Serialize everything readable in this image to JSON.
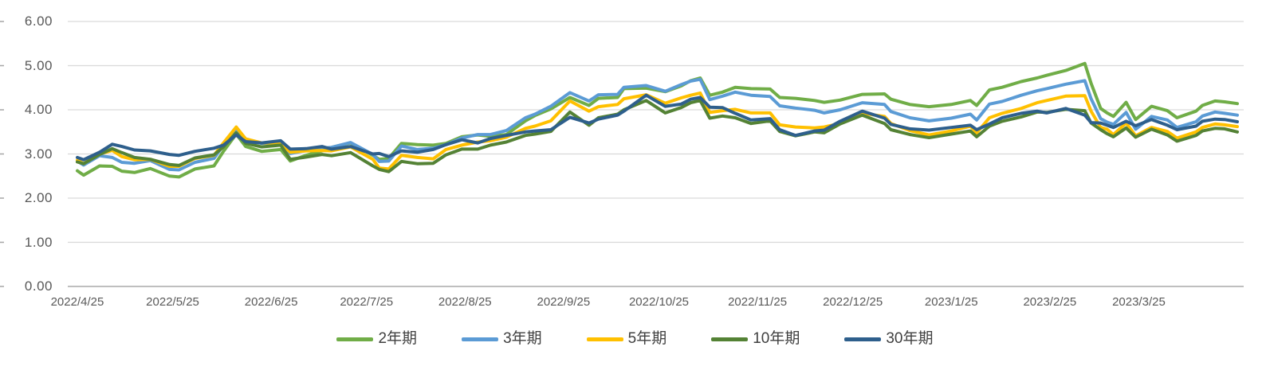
{
  "chart_data": {
    "type": "line",
    "title": "",
    "xlabel": "",
    "ylabel": "",
    "grid": true,
    "legend_position": "bottom",
    "y_axis": {
      "min": 0,
      "max": 6,
      "step": 1,
      "tick_labels": [
        "0.00",
        "1.00",
        "2.00",
        "3.00",
        "4.00",
        "5.00",
        "6.00"
      ]
    },
    "x_axis": {
      "tick_labels": [
        "2022/4/25",
        "2022/5/25",
        "2022/6/25",
        "2022/7/25",
        "2022/8/25",
        "2022/9/25",
        "2022/10/25",
        "2022/11/25",
        "2022/12/25",
        "2023/1/25",
        "2023/2/25",
        "2023/3/25"
      ]
    },
    "x": [
      "2022/4/25",
      "2022/4/27",
      "2022/5/2",
      "2022/5/6",
      "2022/5/9",
      "2022/5/13",
      "2022/5/18",
      "2022/5/24",
      "2022/5/27",
      "2022/6/1",
      "2022/6/7",
      "2022/6/10",
      "2022/6/14",
      "2022/6/17",
      "2022/6/22",
      "2022/6/28",
      "2022/7/1",
      "2022/7/6",
      "2022/7/11",
      "2022/7/14",
      "2022/7/20",
      "2022/7/27",
      "2022/7/29",
      "2022/8/1",
      "2022/8/5",
      "2022/8/10",
      "2022/8/15",
      "2022/8/19",
      "2022/8/24",
      "2022/8/29",
      "2022/9/2",
      "2022/9/7",
      "2022/9/13",
      "2022/9/16",
      "2022/9/21",
      "2022/9/27",
      "2022/10/3",
      "2022/10/6",
      "2022/10/12",
      "2022/10/14",
      "2022/10/21",
      "2022/10/27",
      "2022/11/1",
      "2022/11/4",
      "2022/11/7",
      "2022/11/10",
      "2022/11/14",
      "2022/11/18",
      "2022/11/23",
      "2022/11/29",
      "2022/12/2",
      "2022/12/7",
      "2022/12/13",
      "2022/12/16",
      "2022/12/21",
      "2022/12/28",
      "2023/1/4",
      "2023/1/6",
      "2023/1/12",
      "2023/1/18",
      "2023/1/25",
      "2023/1/31",
      "2023/2/2",
      "2023/2/6",
      "2023/2/10",
      "2023/2/16",
      "2023/2/21",
      "2023/2/24",
      "2023/3/2",
      "2023/3/8",
      "2023/3/10",
      "2023/3/13",
      "2023/3/15",
      "2023/3/17",
      "2023/3/21",
      "2023/3/24",
      "2023/3/29",
      "2023/4/3",
      "2023/4/6",
      "2023/4/12",
      "2023/4/14",
      "2023/4/18",
      "2023/4/21",
      "2023/4/25"
    ],
    "series": [
      {
        "name": "2年期",
        "color": "#70AD47",
        "values": [
          2.62,
          2.52,
          2.73,
          2.72,
          2.61,
          2.58,
          2.67,
          2.5,
          2.48,
          2.66,
          2.73,
          3.06,
          3.45,
          3.17,
          3.06,
          3.1,
          2.84,
          2.97,
          3.07,
          3.15,
          3.25,
          2.97,
          2.88,
          2.9,
          3.24,
          3.21,
          3.2,
          3.24,
          3.39,
          3.43,
          3.4,
          3.44,
          3.75,
          3.87,
          4.02,
          4.28,
          4.1,
          4.26,
          4.28,
          4.48,
          4.49,
          4.41,
          4.54,
          4.66,
          4.72,
          4.33,
          4.4,
          4.51,
          4.48,
          4.47,
          4.28,
          4.26,
          4.21,
          4.17,
          4.22,
          4.35,
          4.36,
          4.24,
          4.12,
          4.07,
          4.12,
          4.21,
          4.1,
          4.45,
          4.51,
          4.64,
          4.72,
          4.78,
          4.89,
          5.05,
          4.6,
          4.03,
          3.93,
          3.85,
          4.17,
          3.78,
          4.08,
          3.98,
          3.82,
          3.97,
          4.1,
          4.2,
          4.18,
          4.14
        ]
      },
      {
        "name": "3年期",
        "color": "#5B9BD5",
        "values": [
          2.84,
          2.75,
          2.96,
          2.92,
          2.81,
          2.79,
          2.85,
          2.65,
          2.64,
          2.81,
          2.9,
          3.2,
          3.58,
          3.34,
          3.24,
          3.25,
          3.01,
          3.08,
          3.13,
          3.15,
          3.26,
          2.99,
          2.83,
          2.84,
          3.18,
          3.1,
          3.13,
          3.21,
          3.36,
          3.44,
          3.44,
          3.53,
          3.82,
          3.9,
          4.08,
          4.39,
          4.2,
          4.34,
          4.35,
          4.51,
          4.55,
          4.42,
          4.57,
          4.65,
          4.69,
          4.23,
          4.31,
          4.4,
          4.33,
          4.3,
          4.09,
          4.04,
          3.99,
          3.93,
          4.0,
          4.16,
          4.12,
          3.96,
          3.82,
          3.75,
          3.81,
          3.9,
          3.77,
          4.13,
          4.19,
          4.33,
          4.43,
          4.48,
          4.58,
          4.66,
          4.25,
          3.8,
          3.72,
          3.67,
          3.94,
          3.56,
          3.85,
          3.77,
          3.6,
          3.73,
          3.86,
          3.95,
          3.92,
          3.88
        ]
      },
      {
        "name": "5年期",
        "color": "#FFC000",
        "values": [
          2.86,
          2.78,
          3.0,
          3.08,
          2.94,
          2.87,
          2.88,
          2.72,
          2.72,
          2.9,
          2.97,
          3.25,
          3.61,
          3.34,
          3.25,
          3.25,
          3.04,
          3.07,
          3.08,
          3.07,
          3.16,
          2.88,
          2.68,
          2.66,
          2.97,
          2.92,
          2.89,
          3.1,
          3.2,
          3.27,
          3.3,
          3.38,
          3.58,
          3.63,
          3.75,
          4.2,
          3.97,
          4.07,
          4.12,
          4.25,
          4.34,
          4.15,
          4.27,
          4.33,
          4.38,
          3.94,
          3.98,
          4.01,
          3.93,
          3.93,
          3.66,
          3.61,
          3.59,
          3.61,
          3.69,
          3.92,
          3.85,
          3.69,
          3.53,
          3.43,
          3.52,
          3.63,
          3.48,
          3.82,
          3.92,
          4.03,
          4.16,
          4.21,
          4.31,
          4.32,
          3.97,
          3.6,
          3.56,
          3.44,
          3.7,
          3.41,
          3.6,
          3.51,
          3.36,
          3.5,
          3.6,
          3.68,
          3.66,
          3.62
        ]
      },
      {
        "name": "10年期",
        "color": "#548235",
        "values": [
          2.82,
          2.78,
          2.99,
          3.12,
          3.03,
          2.92,
          2.88,
          2.76,
          2.74,
          2.91,
          2.98,
          3.16,
          3.48,
          3.24,
          3.16,
          3.2,
          2.88,
          2.93,
          2.99,
          2.96,
          3.03,
          2.73,
          2.65,
          2.6,
          2.83,
          2.78,
          2.79,
          2.98,
          3.11,
          3.11,
          3.2,
          3.27,
          3.42,
          3.45,
          3.51,
          3.95,
          3.65,
          3.82,
          3.9,
          4.0,
          4.21,
          3.93,
          4.05,
          4.16,
          4.21,
          3.81,
          3.86,
          3.82,
          3.69,
          3.75,
          3.51,
          3.41,
          3.5,
          3.48,
          3.68,
          3.88,
          3.69,
          3.55,
          3.44,
          3.37,
          3.45,
          3.52,
          3.39,
          3.63,
          3.74,
          3.84,
          3.95,
          3.94,
          4.01,
          3.98,
          3.7,
          3.55,
          3.46,
          3.39,
          3.59,
          3.38,
          3.56,
          3.43,
          3.29,
          3.42,
          3.52,
          3.58,
          3.57,
          3.5
        ]
      },
      {
        "name": "30年期",
        "color": "#2E5F8C",
        "values": [
          2.92,
          2.87,
          3.04,
          3.22,
          3.17,
          3.09,
          3.07,
          2.99,
          2.97,
          3.06,
          3.13,
          3.2,
          3.43,
          3.28,
          3.25,
          3.3,
          3.11,
          3.12,
          3.17,
          3.11,
          3.17,
          3.0,
          3.01,
          2.94,
          3.07,
          3.04,
          3.1,
          3.21,
          3.32,
          3.25,
          3.35,
          3.42,
          3.5,
          3.52,
          3.55,
          3.83,
          3.7,
          3.79,
          3.88,
          3.97,
          4.33,
          4.08,
          4.13,
          4.24,
          4.28,
          4.06,
          4.05,
          3.92,
          3.77,
          3.8,
          3.55,
          3.42,
          3.52,
          3.54,
          3.74,
          3.97,
          3.81,
          3.67,
          3.57,
          3.54,
          3.6,
          3.65,
          3.55,
          3.68,
          3.82,
          3.92,
          3.97,
          3.93,
          4.03,
          3.88,
          3.71,
          3.7,
          3.65,
          3.6,
          3.74,
          3.64,
          3.78,
          3.65,
          3.55,
          3.63,
          3.74,
          3.79,
          3.78,
          3.73
        ]
      }
    ]
  },
  "colors": {
    "background": "#FFFFFF",
    "grid": "#D9D9D9",
    "axis_line": "#BFBFBF",
    "axis_tick": "#A6A6A6",
    "tick_text": "#595959",
    "legend_text": "#404040"
  }
}
